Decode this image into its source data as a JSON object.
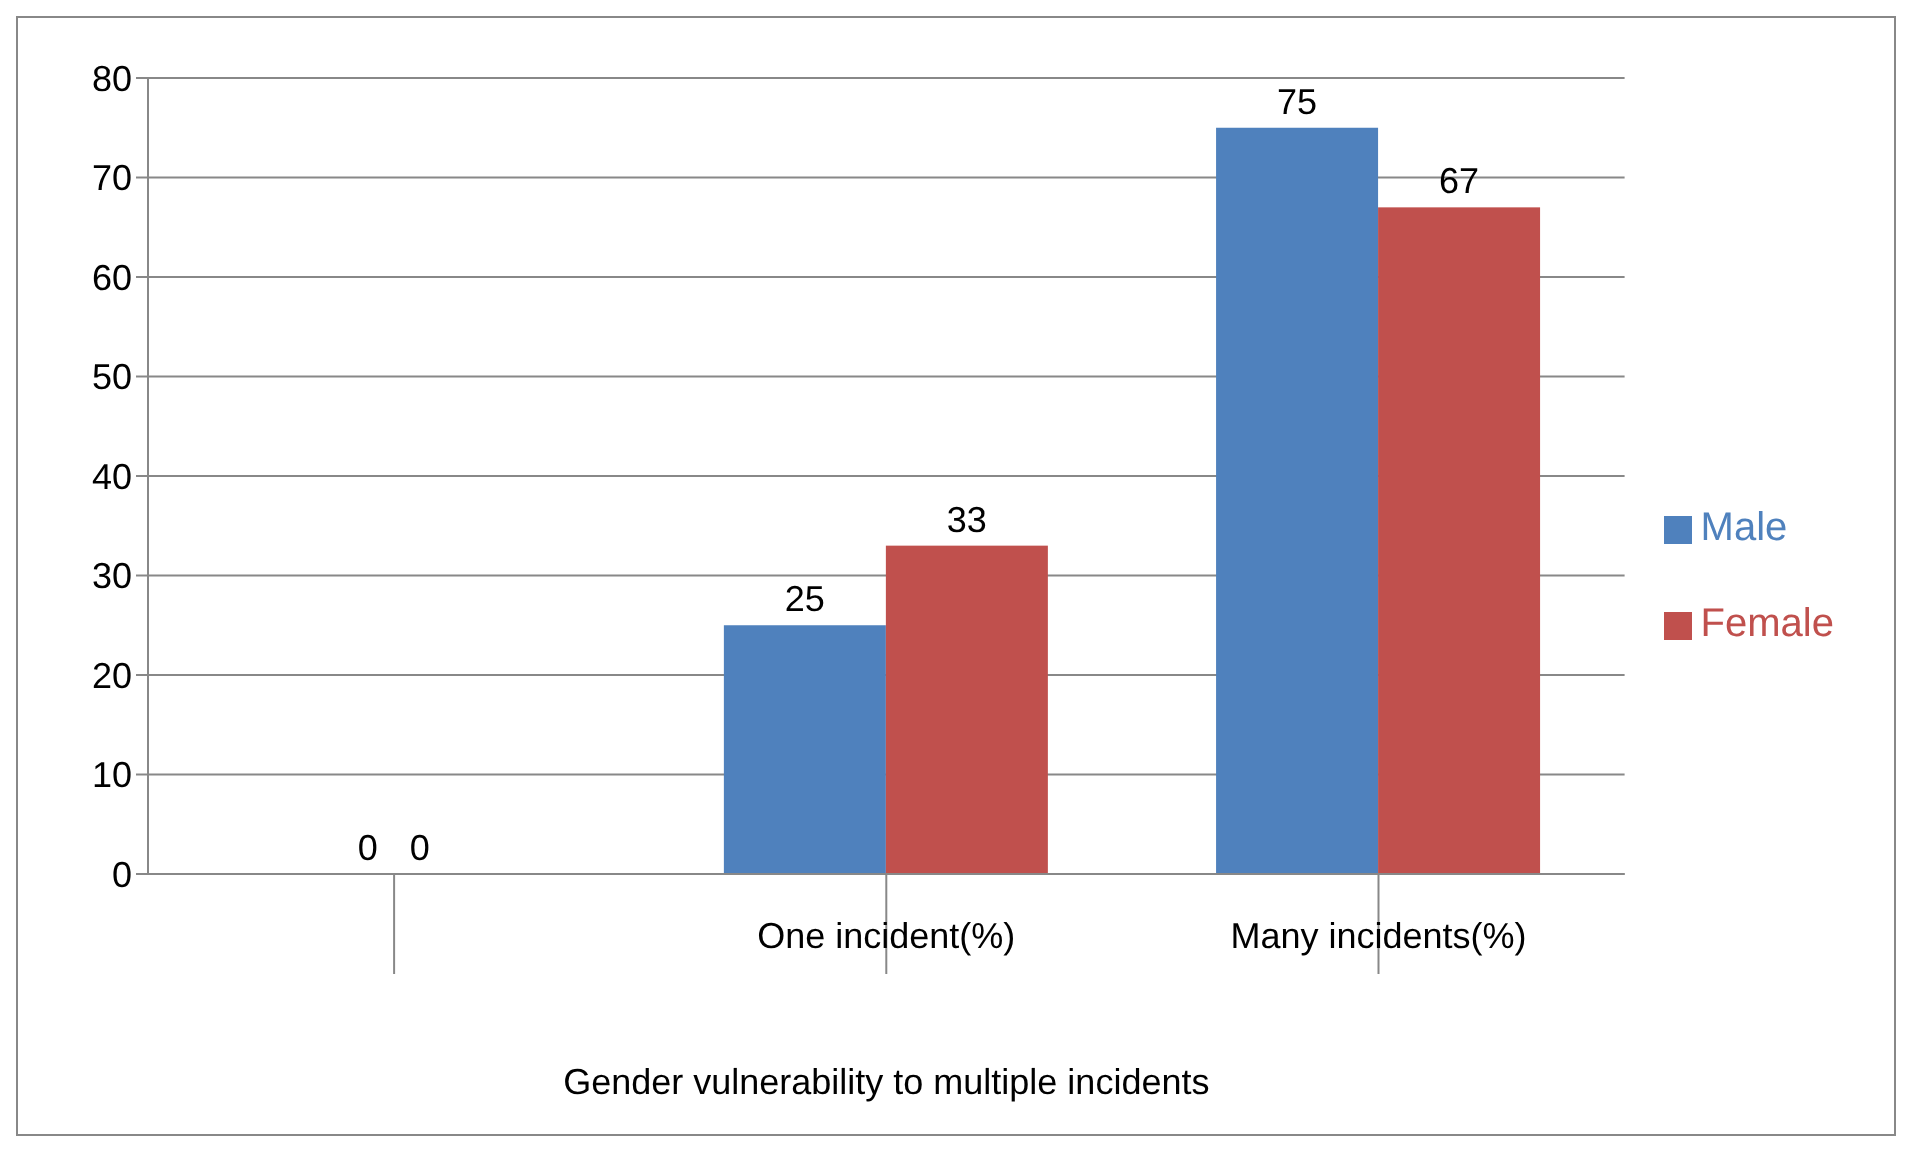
{
  "chart_data": {
    "type": "bar",
    "xlabel": "Gender vulnerability to multiple incidents",
    "categories": [
      null,
      "One incident(%)",
      "Many incidents(%)"
    ],
    "series": [
      {
        "name": "Male",
        "color": "#4f81bd",
        "values": [
          0,
          25,
          75
        ]
      },
      {
        "name": "Female",
        "color": "#c0504d",
        "values": [
          0,
          33,
          67
        ]
      }
    ],
    "ylim": [
      0,
      80
    ],
    "yticks": [
      0,
      10,
      20,
      30,
      40,
      50,
      60,
      70,
      80
    ],
    "grid": "y",
    "legend": "right",
    "data_labels": true
  }
}
